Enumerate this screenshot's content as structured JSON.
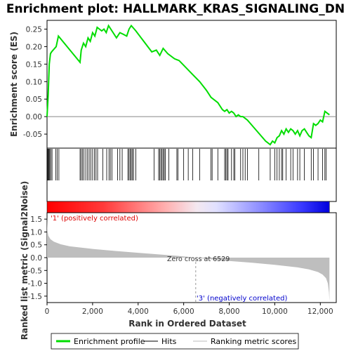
{
  "chart_data": {
    "type": "line",
    "title": "Enrichment plot: HALLMARK_KRAS_SIGNALING_DN",
    "top_panel": {
      "ylabel": "Enrichment score (ES)",
      "ylim": [
        -0.09,
        0.275
      ],
      "yticks": [
        -0.05,
        0.0,
        0.05,
        0.1,
        0.15,
        0.2,
        0.25
      ],
      "ytick_labels": [
        "-0.05",
        "0.00",
        "0.05",
        "0.10",
        "0.15",
        "0.20",
        "0.25"
      ],
      "series": [
        {
          "name": "Enrichment profile",
          "color": "#00dd00",
          "x": [
            0,
            50,
            100,
            150,
            200,
            400,
            500,
            1450,
            1500,
            1600,
            1700,
            1800,
            1900,
            2000,
            2100,
            2200,
            2400,
            2500,
            2600,
            2700,
            2900,
            3050,
            3200,
            3350,
            3500,
            3600,
            3700,
            3900,
            4600,
            4800,
            4950,
            5100,
            5300,
            5600,
            5800,
            6100,
            6400,
            6700,
            7000,
            7200,
            7500,
            7700,
            7800,
            7900,
            8000,
            8100,
            8200,
            8300,
            8400,
            8500,
            8600,
            8700,
            8800,
            9000,
            9200,
            9400,
            9600,
            9800,
            9900,
            10000,
            10100,
            10200,
            10300,
            10400,
            10500,
            10600,
            10700,
            10800,
            10900,
            11000,
            11100,
            11200,
            11300,
            11400,
            11500,
            11600,
            11700,
            11800,
            11900,
            12000,
            12100,
            12200,
            12300,
            12400
          ],
          "y": [
            0.0,
            0.06,
            0.15,
            0.18,
            0.185,
            0.2,
            0.23,
            0.155,
            0.19,
            0.21,
            0.2,
            0.225,
            0.215,
            0.24,
            0.23,
            0.255,
            0.245,
            0.25,
            0.24,
            0.26,
            0.24,
            0.225,
            0.24,
            0.235,
            0.23,
            0.25,
            0.26,
            0.245,
            0.185,
            0.19,
            0.175,
            0.195,
            0.18,
            0.165,
            0.16,
            0.14,
            0.12,
            0.1,
            0.075,
            0.055,
            0.04,
            0.02,
            0.015,
            0.02,
            0.01,
            0.015,
            0.01,
            0.0,
            0.005,
            0.0,
            0.0,
            -0.005,
            -0.01,
            -0.025,
            -0.04,
            -0.055,
            -0.07,
            -0.08,
            -0.07,
            -0.075,
            -0.06,
            -0.055,
            -0.04,
            -0.05,
            -0.035,
            -0.045,
            -0.035,
            -0.04,
            -0.05,
            -0.04,
            -0.055,
            -0.04,
            -0.035,
            -0.045,
            -0.055,
            -0.06,
            -0.02,
            -0.025,
            -0.02,
            -0.01,
            -0.015,
            0.015,
            0.01,
            0.005
          ]
        }
      ],
      "zero_line": 0.0
    },
    "hits": {
      "name": "Hits",
      "positions": [
        30,
        60,
        90,
        120,
        170,
        220,
        380,
        450,
        520,
        1450,
        1500,
        1560,
        1620,
        1700,
        1780,
        1850,
        1920,
        2000,
        2080,
        2150,
        2220,
        2450,
        2620,
        2720,
        2780,
        2850,
        3100,
        3200,
        3300,
        3550,
        3600,
        3650,
        3700,
        3750,
        3800,
        3900,
        4700,
        4900,
        4950,
        5000,
        5050,
        5100,
        5150,
        5200,
        5350,
        5700,
        5750,
        6000,
        6200,
        6400,
        6700,
        7200,
        7250,
        7500,
        7800,
        7850,
        7900,
        7950,
        8100,
        8200,
        8250,
        8500,
        8600,
        8700,
        8800,
        9300,
        9800,
        10000,
        10100,
        10200,
        10300,
        10350,
        10500,
        10700,
        10800,
        11000,
        11100,
        11300,
        11600,
        11700,
        11900,
        12100,
        12200,
        12250
      ]
    },
    "bottom_panel": {
      "ylabel": "Ranked list metric (Signal2Noise)",
      "xlabel": "Rank in Ordered Dataset",
      "ylim": [
        -1.75,
        1.75
      ],
      "yticks": [
        -1.5,
        -1.0,
        -0.5,
        0.0,
        0.5,
        1.0,
        1.5
      ],
      "ytick_labels": [
        "-1.5",
        "-1.0",
        "-0.5",
        "0.0",
        "0.5",
        "1.0",
        "1.5"
      ],
      "xticks": [
        0,
        2000,
        4000,
        6000,
        8000,
        10000,
        12000
      ],
      "xtick_labels": [
        "0",
        "2,000",
        "4,000",
        "6,000",
        "8,000",
        "10,000",
        "12,000"
      ],
      "xlim": [
        0,
        12700
      ],
      "n_genes": 12400,
      "metric_profile": {
        "x": [
          0,
          20,
          60,
          150,
          300,
          600,
          1000,
          2000,
          3000,
          4000,
          5000,
          6000,
          6529,
          7000,
          8000,
          9000,
          10000,
          11000,
          11500,
          11900,
          12100,
          12250,
          12330,
          12380,
          12400
        ],
        "y": [
          1.6,
          1.05,
          0.85,
          0.72,
          0.62,
          0.52,
          0.44,
          0.34,
          0.26,
          0.19,
          0.12,
          0.05,
          0.0,
          -0.05,
          -0.13,
          -0.2,
          -0.28,
          -0.38,
          -0.46,
          -0.56,
          -0.66,
          -0.8,
          -1.0,
          -1.35,
          -1.7
        ]
      },
      "annotations": {
        "positive": "'1' (positively correlated)",
        "zero_cross": "Zero cross at 6529",
        "negative": "'3' (negatively correlated)"
      },
      "zero_cross": 6529
    },
    "legend": {
      "placement": "bottom",
      "entries": [
        {
          "label": "Enrichment profile",
          "color": "#00dd00",
          "style": "thick-line"
        },
        {
          "label": "Hits",
          "color": "#000000",
          "style": "thin-line"
        },
        {
          "label": "Ranking metric scores",
          "color": "#bbbbbb",
          "style": "thin-line"
        }
      ]
    },
    "colors": {
      "enrichment": "#00dd00",
      "metric_fill": "#bebebe",
      "positive": "#ff0000",
      "negative": "#0000ff"
    }
  }
}
